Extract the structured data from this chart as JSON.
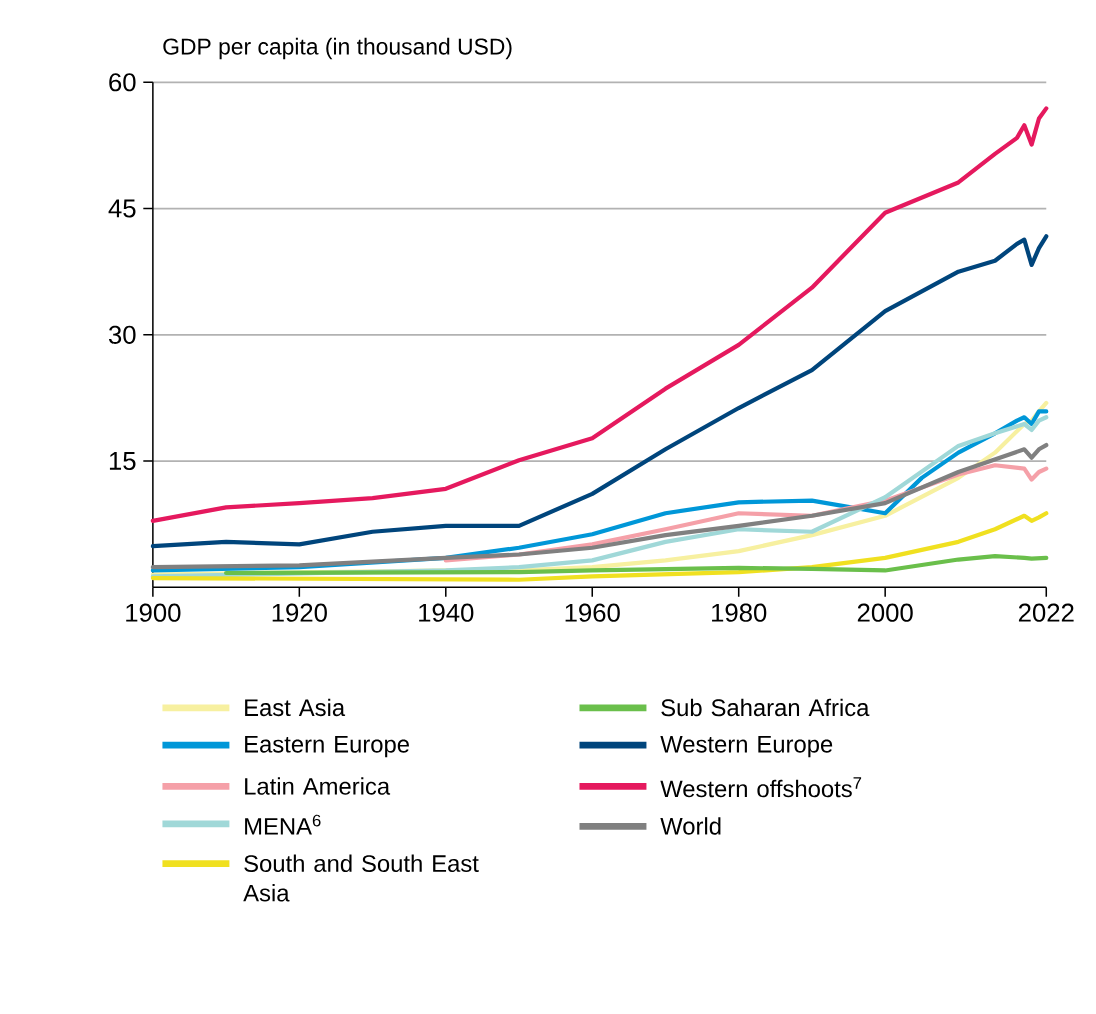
{
  "chart_data": {
    "type": "line",
    "ylabel": "GDP per capita (in thousand USD)",
    "xlim": [
      1900,
      2022
    ],
    "ylim": [
      0,
      60
    ],
    "xticks": [
      1900,
      1920,
      1940,
      1960,
      1980,
      2000,
      2022
    ],
    "yticks": [
      15,
      30,
      45,
      60
    ],
    "grid": "y",
    "legend": "bottom",
    "series": [
      {
        "name": "East Asia",
        "color": "#f7f0a0",
        "x": [
          1900,
          1940,
          1950,
          1960,
          1970,
          1980,
          1990,
          2000,
          2010,
          2015,
          2019,
          2020,
          2021,
          2022
        ],
        "values": [
          1.5,
          2.0,
          2.0,
          2.4,
          3.2,
          4.3,
          6.2,
          8.5,
          13.0,
          16.0,
          19.4,
          19.8,
          20.9,
          21.9
        ]
      },
      {
        "name": "Eastern Europe",
        "color": "#0097d8",
        "x": [
          1900,
          1920,
          1940,
          1950,
          1960,
          1970,
          1980,
          1990,
          2000,
          2005,
          2010,
          2015,
          2018,
          2019,
          2020,
          2021,
          2022
        ],
        "values": [
          2.0,
          2.4,
          3.5,
          4.7,
          6.3,
          8.8,
          10.1,
          10.3,
          8.8,
          13.0,
          16.0,
          18.3,
          19.8,
          20.2,
          19.4,
          20.9,
          20.9
        ]
      },
      {
        "name": "Latin America",
        "color": "#f5a0a8",
        "x": [
          1940,
          1950,
          1960,
          1970,
          1980,
          1990,
          2000,
          2010,
          2015,
          2019,
          2020,
          2021,
          2022
        ],
        "values": [
          3.2,
          3.9,
          5.1,
          6.9,
          8.8,
          8.5,
          10.3,
          13.4,
          14.5,
          14.1,
          12.8,
          13.7,
          14.1
        ]
      },
      {
        "name": "MENA$^{6}$",
        "color": "#a0d8d8",
        "x": [
          1900,
          1940,
          1950,
          1960,
          1970,
          1980,
          1990,
          2000,
          2010,
          2015,
          2019,
          2020,
          2021,
          2022
        ],
        "values": [
          1.3,
          2.0,
          2.4,
          3.2,
          5.4,
          6.9,
          6.6,
          10.7,
          16.8,
          18.3,
          19.4,
          18.7,
          19.8,
          20.2
        ]
      },
      {
        "name": "South and South East Asia",
        "color": "#f0e020",
        "x": [
          1900,
          1950,
          1960,
          1980,
          1990,
          2000,
          2010,
          2015,
          2019,
          2020,
          2021,
          2022
        ],
        "values": [
          1.1,
          0.9,
          1.3,
          1.8,
          2.4,
          3.5,
          5.4,
          6.9,
          8.5,
          7.9,
          8.3,
          8.8
        ]
      },
      {
        "name": "Sub Saharan Africa",
        "color": "#6abf4b",
        "x": [
          1910,
          1950,
          1960,
          1980,
          1990,
          2000,
          2010,
          2015,
          2019,
          2020,
          2022
        ],
        "values": [
          1.7,
          1.8,
          2.0,
          2.3,
          2.2,
          2.0,
          3.3,
          3.7,
          3.5,
          3.4,
          3.5
        ]
      },
      {
        "name": "Western Europe",
        "color": "#00457c",
        "x": [
          1900,
          1910,
          1920,
          1930,
          1940,
          1950,
          1960,
          1970,
          1980,
          1990,
          2000,
          2010,
          2015,
          2018,
          2019,
          2020,
          2021,
          2022
        ],
        "values": [
          4.9,
          5.4,
          5.1,
          6.6,
          7.3,
          7.3,
          11.1,
          16.4,
          21.3,
          25.8,
          32.8,
          37.5,
          38.8,
          40.8,
          41.3,
          38.3,
          40.3,
          41.7
        ]
      },
      {
        "name": "Western offshoots$^{7}$",
        "color": "#e5195e",
        "x": [
          1900,
          1910,
          1920,
          1930,
          1940,
          1950,
          1960,
          1970,
          1980,
          1990,
          2000,
          2010,
          2015,
          2018,
          2019,
          2020,
          2021,
          2022
        ],
        "values": [
          7.9,
          9.5,
          10.0,
          10.6,
          11.7,
          15.1,
          17.7,
          23.6,
          28.8,
          35.6,
          44.5,
          48.1,
          51.5,
          53.4,
          54.9,
          52.6,
          55.7,
          56.9
        ]
      },
      {
        "name": "World",
        "color": "#808080",
        "x": [
          1900,
          1920,
          1940,
          1950,
          1960,
          1970,
          1980,
          1990,
          2000,
          2010,
          2019,
          2020,
          2021,
          2022
        ],
        "values": [
          2.4,
          2.6,
          3.5,
          3.9,
          4.7,
          6.2,
          7.3,
          8.5,
          10.0,
          13.7,
          16.4,
          15.4,
          16.4,
          16.9
        ]
      }
    ]
  }
}
